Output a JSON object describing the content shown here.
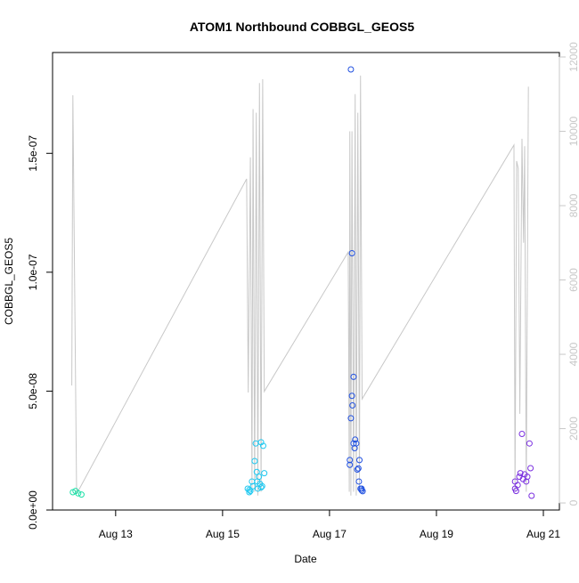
{
  "chart_data": {
    "type": "scatter",
    "title": "ATOM1 Northbound COBBGL_GEOS5",
    "x_label": "Date",
    "y_label": "COBBGL_GEOS5",
    "xlim": [
      11.82,
      21.3
    ],
    "xticks": [
      {
        "value": 13,
        "label": "Aug 13"
      },
      {
        "value": 15,
        "label": "Aug 15"
      },
      {
        "value": 17,
        "label": "Aug 17"
      },
      {
        "value": 19,
        "label": "Aug 19"
      },
      {
        "value": 21,
        "label": "Aug 21"
      }
    ],
    "ylim": [
      0,
      1.924e-07
    ],
    "yticks": [
      {
        "value": 0,
        "label": "0.0e+00"
      },
      {
        "value": 5e-08,
        "label": "5.0e-08"
      },
      {
        "value": 1e-07,
        "label": "1.0e-07"
      },
      {
        "value": 1.5e-07,
        "label": "1.5e-07"
      }
    ],
    "y2lim": [
      -190,
      12120
    ],
    "y2ticks": [
      0,
      2000,
      4000,
      6000,
      8000,
      10000,
      12000
    ],
    "y2_color": "#c8c8c8",
    "series": [
      {
        "type": "line",
        "axis": "y2",
        "color": "#c8c8c8",
        "x": [
          12.18,
          12.2,
          12.27,
          15.45,
          15.48,
          15.52,
          15.55,
          15.57,
          15.6,
          15.63,
          15.66,
          15.69,
          15.72,
          15.75,
          15.78,
          17.35,
          17.37,
          17.38,
          17.4,
          17.42,
          17.45,
          17.48,
          17.5,
          17.53,
          17.56,
          17.58,
          17.61,
          20.45,
          20.47,
          20.5,
          20.53,
          20.56,
          20.6,
          20.63,
          20.65,
          20.68,
          20.72
        ],
        "values": [
          3160,
          10970,
          240,
          8720,
          2970,
          9300,
          400,
          10600,
          300,
          10500,
          200,
          11300,
          300,
          11400,
          3000,
          6750,
          300,
          10000,
          200,
          10000,
          300,
          11000,
          200,
          10500,
          300,
          11500,
          2800,
          9630,
          300,
          9200,
          9000,
          2400,
          9800,
          7000,
          9600,
          300,
          11200
        ]
      },
      {
        "type": "scatter",
        "color": "#1fe0a8",
        "x": [
          12.2,
          12.25,
          12.3,
          12.36
        ],
        "values": [
          7.5e-09,
          8e-09,
          7e-09,
          6.5e-09
        ]
      },
      {
        "type": "scatter",
        "color": "#1ec8f0",
        "x": [
          15.47,
          15.5,
          15.52,
          15.55,
          15.57,
          15.6,
          15.62,
          15.64,
          15.66,
          15.68,
          15.7,
          15.72,
          15.74,
          15.76,
          15.78,
          15.5,
          15.65,
          15.72
        ],
        "values": [
          9e-09,
          7.5e-09,
          8e-09,
          1.2e-08,
          1e-08,
          2.06e-08,
          2.8e-08,
          1.6e-08,
          9e-09,
          1.4e-08,
          1.1e-08,
          2.85e-08,
          1e-08,
          2.7e-08,
          1.55e-08,
          8.5e-09,
          1.2e-08,
          9.5e-09
        ]
      },
      {
        "type": "scatter",
        "color": "#2050e0",
        "x": [
          17.4,
          17.42,
          17.45,
          17.42,
          17.43,
          17.4,
          17.48,
          17.45,
          17.5,
          17.47,
          17.38,
          17.38,
          17.52,
          17.54,
          17.55,
          17.58,
          17.6,
          17.62,
          17.56,
          17.6
        ],
        "values": [
          1.853e-07,
          1.08e-07,
          5.6e-08,
          4.8e-08,
          4.4e-08,
          3.86e-08,
          2.96e-08,
          2.8e-08,
          2.8e-08,
          2.6e-08,
          2.1e-08,
          1.9e-08,
          1.7e-08,
          1.75e-08,
          1.2e-08,
          9e-09,
          8.3e-09,
          7.9e-09,
          2.1e-08,
          9e-09
        ]
      },
      {
        "type": "scatter",
        "color": "#7b30e0",
        "x": [
          20.47,
          20.49,
          20.52,
          20.55,
          20.57,
          20.6,
          20.62,
          20.65,
          20.68,
          20.7,
          20.74,
          20.76,
          20.78,
          20.47
        ],
        "values": [
          1.2e-08,
          8e-09,
          1.05e-08,
          1.4e-08,
          1.55e-08,
          3.2e-08,
          1.3e-08,
          1.5e-08,
          1.2e-08,
          1.4e-08,
          2.8e-08,
          1.76e-08,
          6e-09,
          9e-09
        ]
      }
    ]
  }
}
